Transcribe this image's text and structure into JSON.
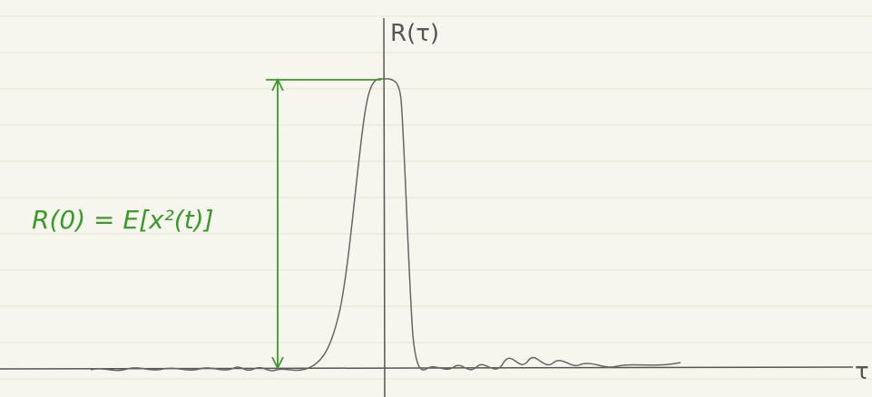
{
  "axes": {
    "y_label": "R(τ)",
    "x_label": "τ"
  },
  "annotation": {
    "label": "R(0) = E[x²(t)]"
  }
}
